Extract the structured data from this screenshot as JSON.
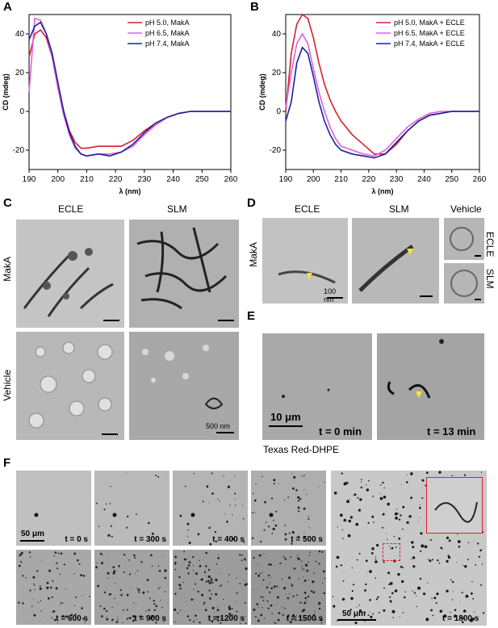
{
  "panels": {
    "A": "A",
    "B": "B",
    "C": "C",
    "D": "D",
    "E": "E",
    "F": "F"
  },
  "chart_data": [
    {
      "type": "line",
      "xlabel": "λ (nm)",
      "ylabel": "CD (mdeg)",
      "xlim": [
        190,
        260
      ],
      "ylim": [
        -30,
        50
      ],
      "xticks": [
        190,
        200,
        210,
        220,
        230,
        240,
        250,
        260
      ],
      "yticks": [
        -20,
        0,
        20,
        40
      ],
      "legend_position": "top-right",
      "series": [
        {
          "name": "pH 5.0, MakA",
          "color": "#d42030",
          "x": [
            190,
            192,
            194,
            196,
            198,
            200,
            202,
            204,
            206,
            208,
            210,
            214,
            218,
            222,
            226,
            230,
            234,
            238,
            242,
            246,
            250,
            254,
            260
          ],
          "y": [
            28,
            40,
            42,
            38,
            28,
            14,
            0,
            -10,
            -16,
            -19,
            -19,
            -18,
            -18,
            -18,
            -15,
            -10,
            -6,
            -3,
            -1,
            0,
            0,
            0,
            0
          ]
        },
        {
          "name": "pH 6.5, MakA",
          "color": "#e060d8",
          "x": [
            190,
            192,
            194,
            196,
            198,
            200,
            202,
            204,
            206,
            208,
            210,
            214,
            218,
            222,
            226,
            230,
            234,
            238,
            242,
            246,
            250,
            254,
            260
          ],
          "y": [
            10,
            48,
            47,
            40,
            28,
            12,
            -2,
            -12,
            -19,
            -22,
            -23,
            -22,
            -22,
            -21,
            -18,
            -12,
            -7,
            -3,
            -1,
            0,
            0,
            0,
            0
          ]
        },
        {
          "name": "pH 7.4, MakA",
          "color": "#1a20a0",
          "x": [
            190,
            192,
            194,
            196,
            198,
            200,
            202,
            204,
            206,
            208,
            210,
            214,
            218,
            222,
            226,
            230,
            234,
            238,
            242,
            246,
            250,
            254,
            260
          ],
          "y": [
            37,
            44,
            46,
            40,
            30,
            15,
            0,
            -11,
            -18,
            -22,
            -23,
            -22,
            -23,
            -21,
            -17,
            -11,
            -6,
            -3,
            -1,
            0,
            0,
            0,
            0
          ]
        }
      ]
    },
    {
      "type": "line",
      "xlabel": "λ (nm)",
      "ylabel": "CD (mdeg)",
      "xlim": [
        190,
        260
      ],
      "ylim": [
        -30,
        50
      ],
      "xticks": [
        190,
        200,
        210,
        220,
        230,
        240,
        250,
        260
      ],
      "yticks": [
        -20,
        0,
        20,
        40
      ],
      "legend_position": "top-right",
      "series": [
        {
          "name": "pH 5.0, MakA + ECLE",
          "color": "#d42030",
          "x": [
            190,
            192,
            194,
            196,
            198,
            200,
            202,
            204,
            206,
            208,
            210,
            214,
            218,
            222,
            226,
            230,
            234,
            238,
            242,
            246,
            250,
            254,
            260
          ],
          "y": [
            0,
            30,
            45,
            50,
            48,
            38,
            25,
            14,
            6,
            0,
            -5,
            -12,
            -17,
            -22,
            -22,
            -17,
            -10,
            -5,
            -2,
            -1,
            0,
            0,
            0
          ]
        },
        {
          "name": "pH 6.5, MakA + ECLE",
          "color": "#e060d8",
          "x": [
            190,
            192,
            194,
            196,
            198,
            200,
            202,
            204,
            206,
            208,
            210,
            214,
            218,
            222,
            226,
            230,
            234,
            238,
            242,
            246,
            250,
            254,
            260
          ],
          "y": [
            2,
            20,
            35,
            40,
            35,
            22,
            10,
            0,
            -8,
            -14,
            -18,
            -20,
            -22,
            -23,
            -20,
            -14,
            -8,
            -4,
            -1,
            0,
            0,
            0,
            0
          ]
        },
        {
          "name": "pH 7.4, MakA + ECLE",
          "color": "#1a20a0",
          "x": [
            190,
            192,
            194,
            196,
            198,
            200,
            202,
            204,
            206,
            208,
            210,
            214,
            218,
            222,
            226,
            230,
            234,
            238,
            242,
            246,
            250,
            254,
            260
          ],
          "y": [
            -5,
            5,
            25,
            33,
            30,
            18,
            5,
            -5,
            -12,
            -17,
            -20,
            -22,
            -23,
            -24,
            -22,
            -16,
            -10,
            -5,
            -2,
            -1,
            0,
            0,
            0
          ]
        }
      ]
    }
  ],
  "panel_c": {
    "col1": "ECLE",
    "col2": "SLM",
    "row1": "MakA",
    "row2": "Vehicle",
    "scale": "500 nm"
  },
  "panel_d": {
    "col1": "ECLE",
    "col2": "SLM",
    "col3": "Vehicle",
    "row": "MakA",
    "side1": "ECLE",
    "side2": "SLM",
    "scale": "100 nm"
  },
  "panel_e": {
    "scale": "10 μm",
    "t1": "t = 0 min",
    "t2": "t = 13 min",
    "caption": "Texas Red-DHPE"
  },
  "panel_f": {
    "scale": "50 μm",
    "frames": [
      "t = 0 s",
      "t = 300 s",
      "t = 400 s",
      "t = 500 s",
      "t = 600 s",
      "t = 900 s",
      "t = 1200 s",
      "t = 1500 s"
    ],
    "big_label": "t = 1800 s",
    "big_scale": "50 μm"
  }
}
